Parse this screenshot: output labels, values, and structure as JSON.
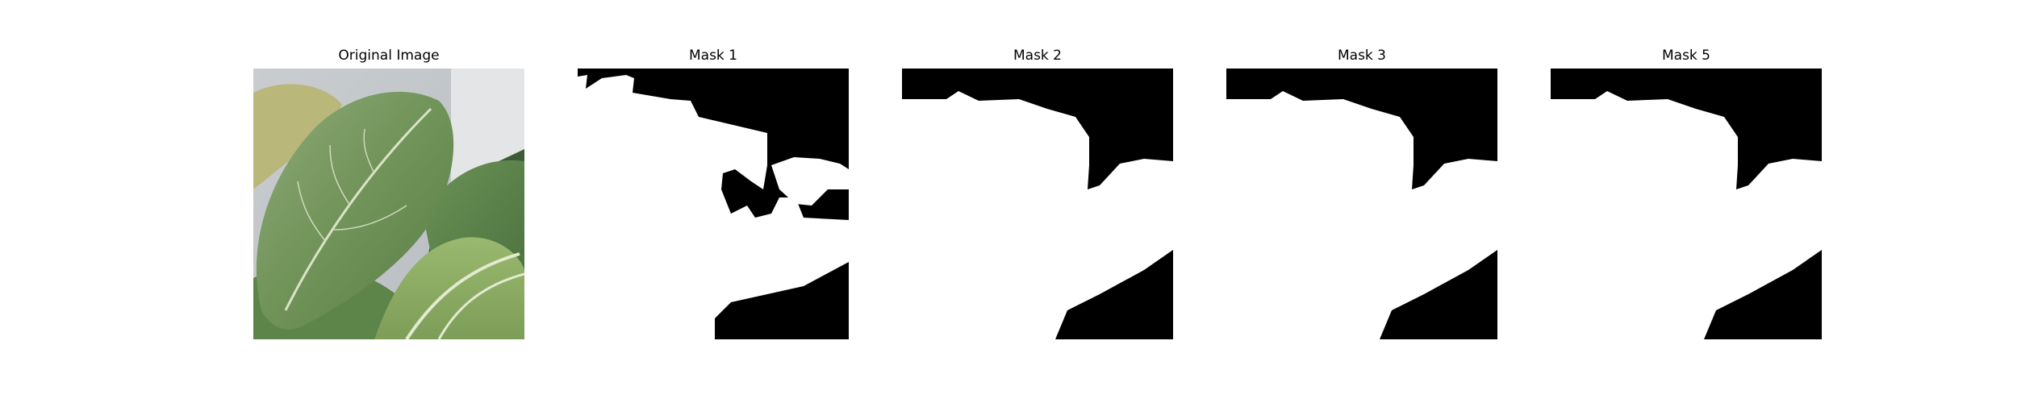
{
  "panels": [
    {
      "title": "Original Image"
    },
    {
      "title": "Mask 1"
    },
    {
      "title": "Mask 2"
    },
    {
      "title": "Mask 3"
    },
    {
      "title": "Mask 5"
    }
  ]
}
